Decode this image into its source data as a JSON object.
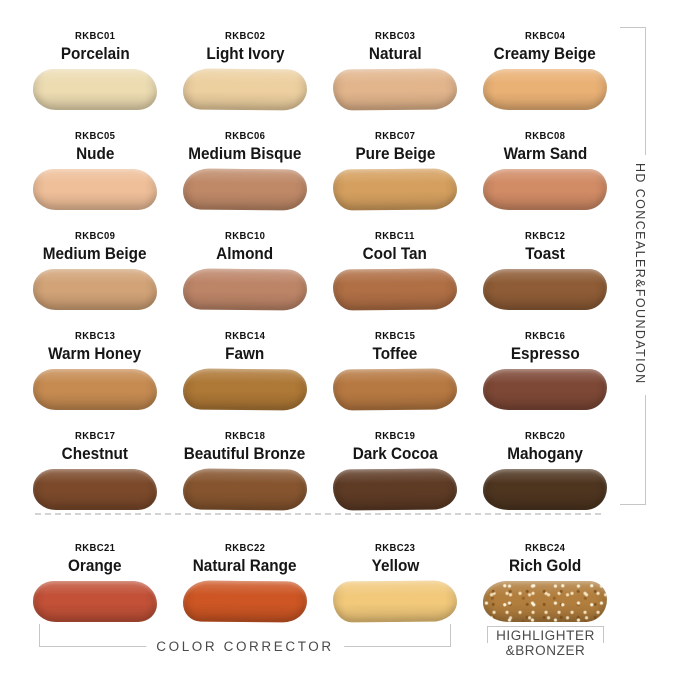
{
  "sections": {
    "concealer_foundation_label": "HD CONCEALER&FOUNDATION",
    "color_corrector_label": "COLOR CORRECTOR",
    "highlighter_bronzer_line1": "HIGHLIGHTER",
    "highlighter_bronzer_line2": "&BRONZER"
  },
  "swatches": [
    {
      "code": "RKBC01",
      "name": "Porcelain",
      "color": "#eddcb2",
      "group": "hd-concealer-foundation"
    },
    {
      "code": "RKBC02",
      "name": "Light Ivory",
      "color": "#edd0a0",
      "group": "hd-concealer-foundation"
    },
    {
      "code": "RKBC03",
      "name": "Natural",
      "color": "#e2b58c",
      "group": "hd-concealer-foundation"
    },
    {
      "code": "RKBC04",
      "name": "Creamy Beige",
      "color": "#eab175",
      "group": "hd-concealer-foundation"
    },
    {
      "code": "RKBC05",
      "name": "Nude",
      "color": "#efbf99",
      "group": "hd-concealer-foundation"
    },
    {
      "code": "RKBC06",
      "name": "Medium Bisque",
      "color": "#bf8968",
      "group": "hd-concealer-foundation"
    },
    {
      "code": "RKBC07",
      "name": "Pure Beige",
      "color": "#d5a05f",
      "group": "hd-concealer-foundation"
    },
    {
      "code": "RKBC08",
      "name": "Warm Sand",
      "color": "#d18b65",
      "group": "hd-concealer-foundation"
    },
    {
      "code": "RKBC09",
      "name": "Medium Beige",
      "color": "#d2a377",
      "group": "hd-concealer-foundation"
    },
    {
      "code": "RKBC10",
      "name": "Almond",
      "color": "#bd8568",
      "group": "hd-concealer-foundation"
    },
    {
      "code": "RKBC11",
      "name": "Cool Tan",
      "color": "#b06f45",
      "group": "hd-concealer-foundation"
    },
    {
      "code": "RKBC12",
      "name": "Toast",
      "color": "#8e5c36",
      "group": "hd-concealer-foundation"
    },
    {
      "code": "RKBC13",
      "name": "Warm Honey",
      "color": "#c68b51",
      "group": "hd-concealer-foundation"
    },
    {
      "code": "RKBC14",
      "name": "Fawn",
      "color": "#ae7836",
      "group": "hd-concealer-foundation"
    },
    {
      "code": "RKBC15",
      "name": "Toffee",
      "color": "#b77942",
      "group": "hd-concealer-foundation"
    },
    {
      "code": "RKBC16",
      "name": "Espresso",
      "color": "#7e4836",
      "group": "hd-concealer-foundation"
    },
    {
      "code": "RKBC17",
      "name": "Chestnut",
      "color": "#7c4a2b",
      "group": "hd-concealer-foundation"
    },
    {
      "code": "RKBC18",
      "name": "Beautiful Bronze",
      "color": "#86552f",
      "group": "hd-concealer-foundation"
    },
    {
      "code": "RKBC19",
      "name": "Dark Cocoa",
      "color": "#5e3b25",
      "group": "hd-concealer-foundation"
    },
    {
      "code": "RKBC20",
      "name": "Mahogany",
      "color": "#4e3520",
      "group": "hd-concealer-foundation"
    },
    {
      "code": "RKBC21",
      "name": "Orange",
      "color": "#c25138",
      "group": "color-corrector"
    },
    {
      "code": "RKBC22",
      "name": "Natural Range",
      "color": "#cd5624",
      "group": "color-corrector"
    },
    {
      "code": "RKBC23",
      "name": "Yellow",
      "color": "#f2c97b",
      "group": "color-corrector"
    },
    {
      "code": "RKBC24",
      "name": "Rich Gold",
      "color": "#b17e3e",
      "finish": "glitter",
      "group": "highlighter-bronzer"
    }
  ],
  "colors": {
    "bracket_line": "#c6c6c6",
    "divider_dash": "#d3d3d3",
    "label_text": "#4a4a4a",
    "code_text": "#121212",
    "name_text": "#161616",
    "background": "#ffffff"
  }
}
